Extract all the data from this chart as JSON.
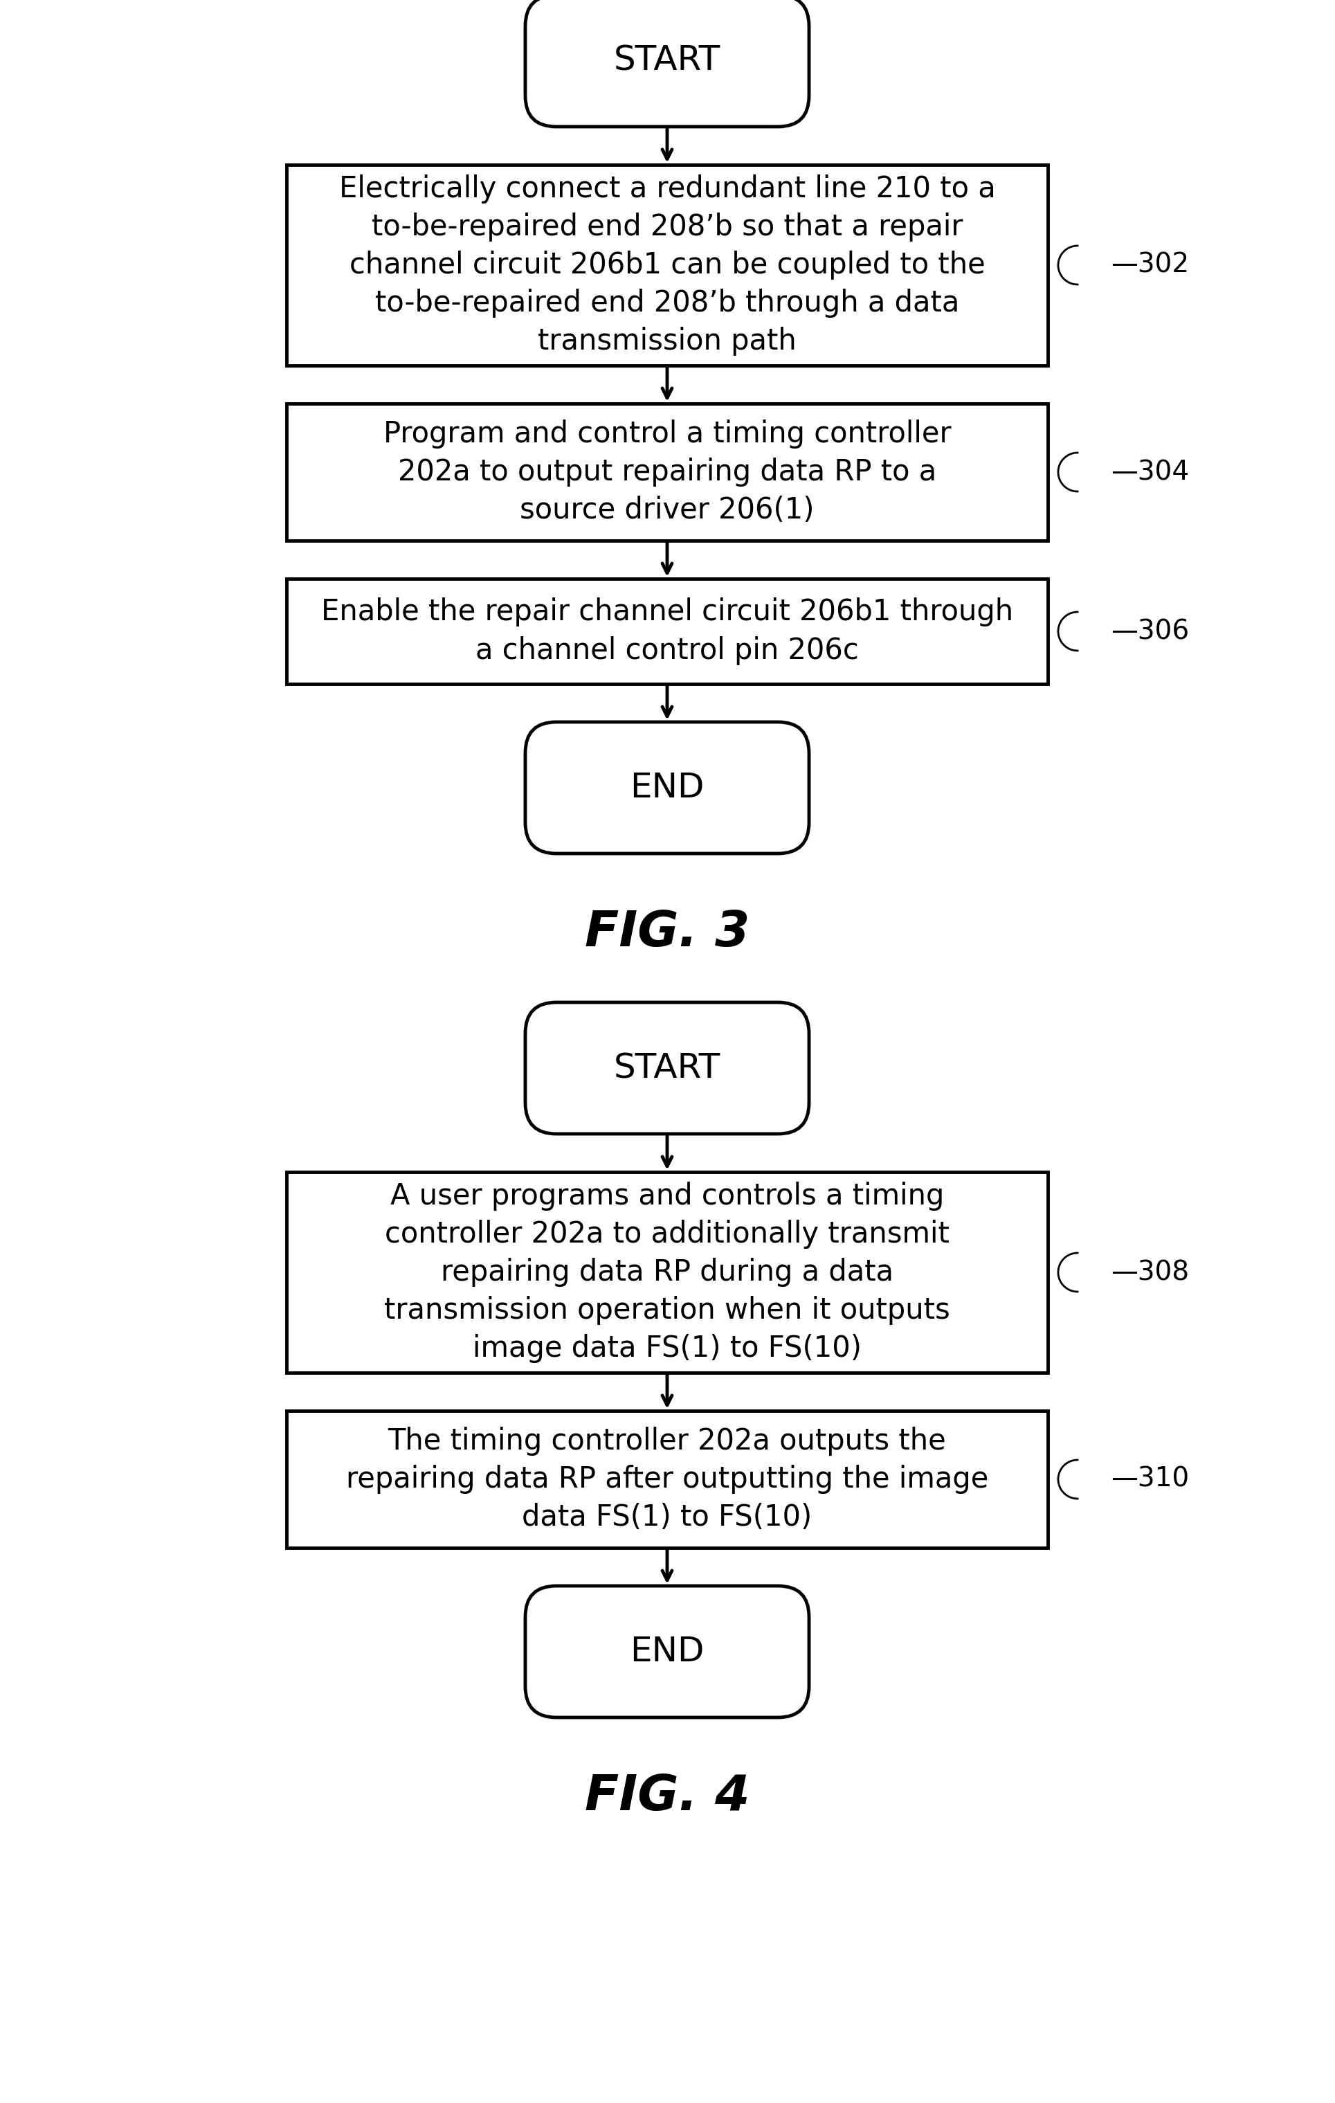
{
  "bg_color": "#ffffff",
  "line_color": "#000000",
  "text_color": "#000000",
  "fig3": {
    "title": "FIG. 3",
    "start_label": "START",
    "end_label": "END",
    "boxes": [
      {
        "text": "Electrically connect a redundant line 210 to a\nto-be-repaired end 208’b so that a repair\nchannel circuit 206b1 can be coupled to the\nto-be-repaired end 208’b through a data\ntransmission path",
        "label": "302"
      },
      {
        "text": "Program and control a timing controller\n202a to output repairing data RP to a\nsource driver 206(1)",
        "label": "304"
      },
      {
        "text": "Enable the repair channel circuit 206b1 through\na channel control pin 206c",
        "label": "306"
      }
    ]
  },
  "fig4": {
    "title": "FIG. 4",
    "start_label": "START",
    "end_label": "END",
    "boxes": [
      {
        "text": "A user programs and controls a timing\ncontroller 202a to additionally transmit\nrepairing data RP during a data\ntransmission operation when it outputs\nimage data FS(1) to FS(10)",
        "label": "308"
      },
      {
        "text": "The timing controller 202a outputs the\nrepairing data RP after outputting the image\ndata FS(1) to FS(10)",
        "label": "310"
      }
    ]
  }
}
